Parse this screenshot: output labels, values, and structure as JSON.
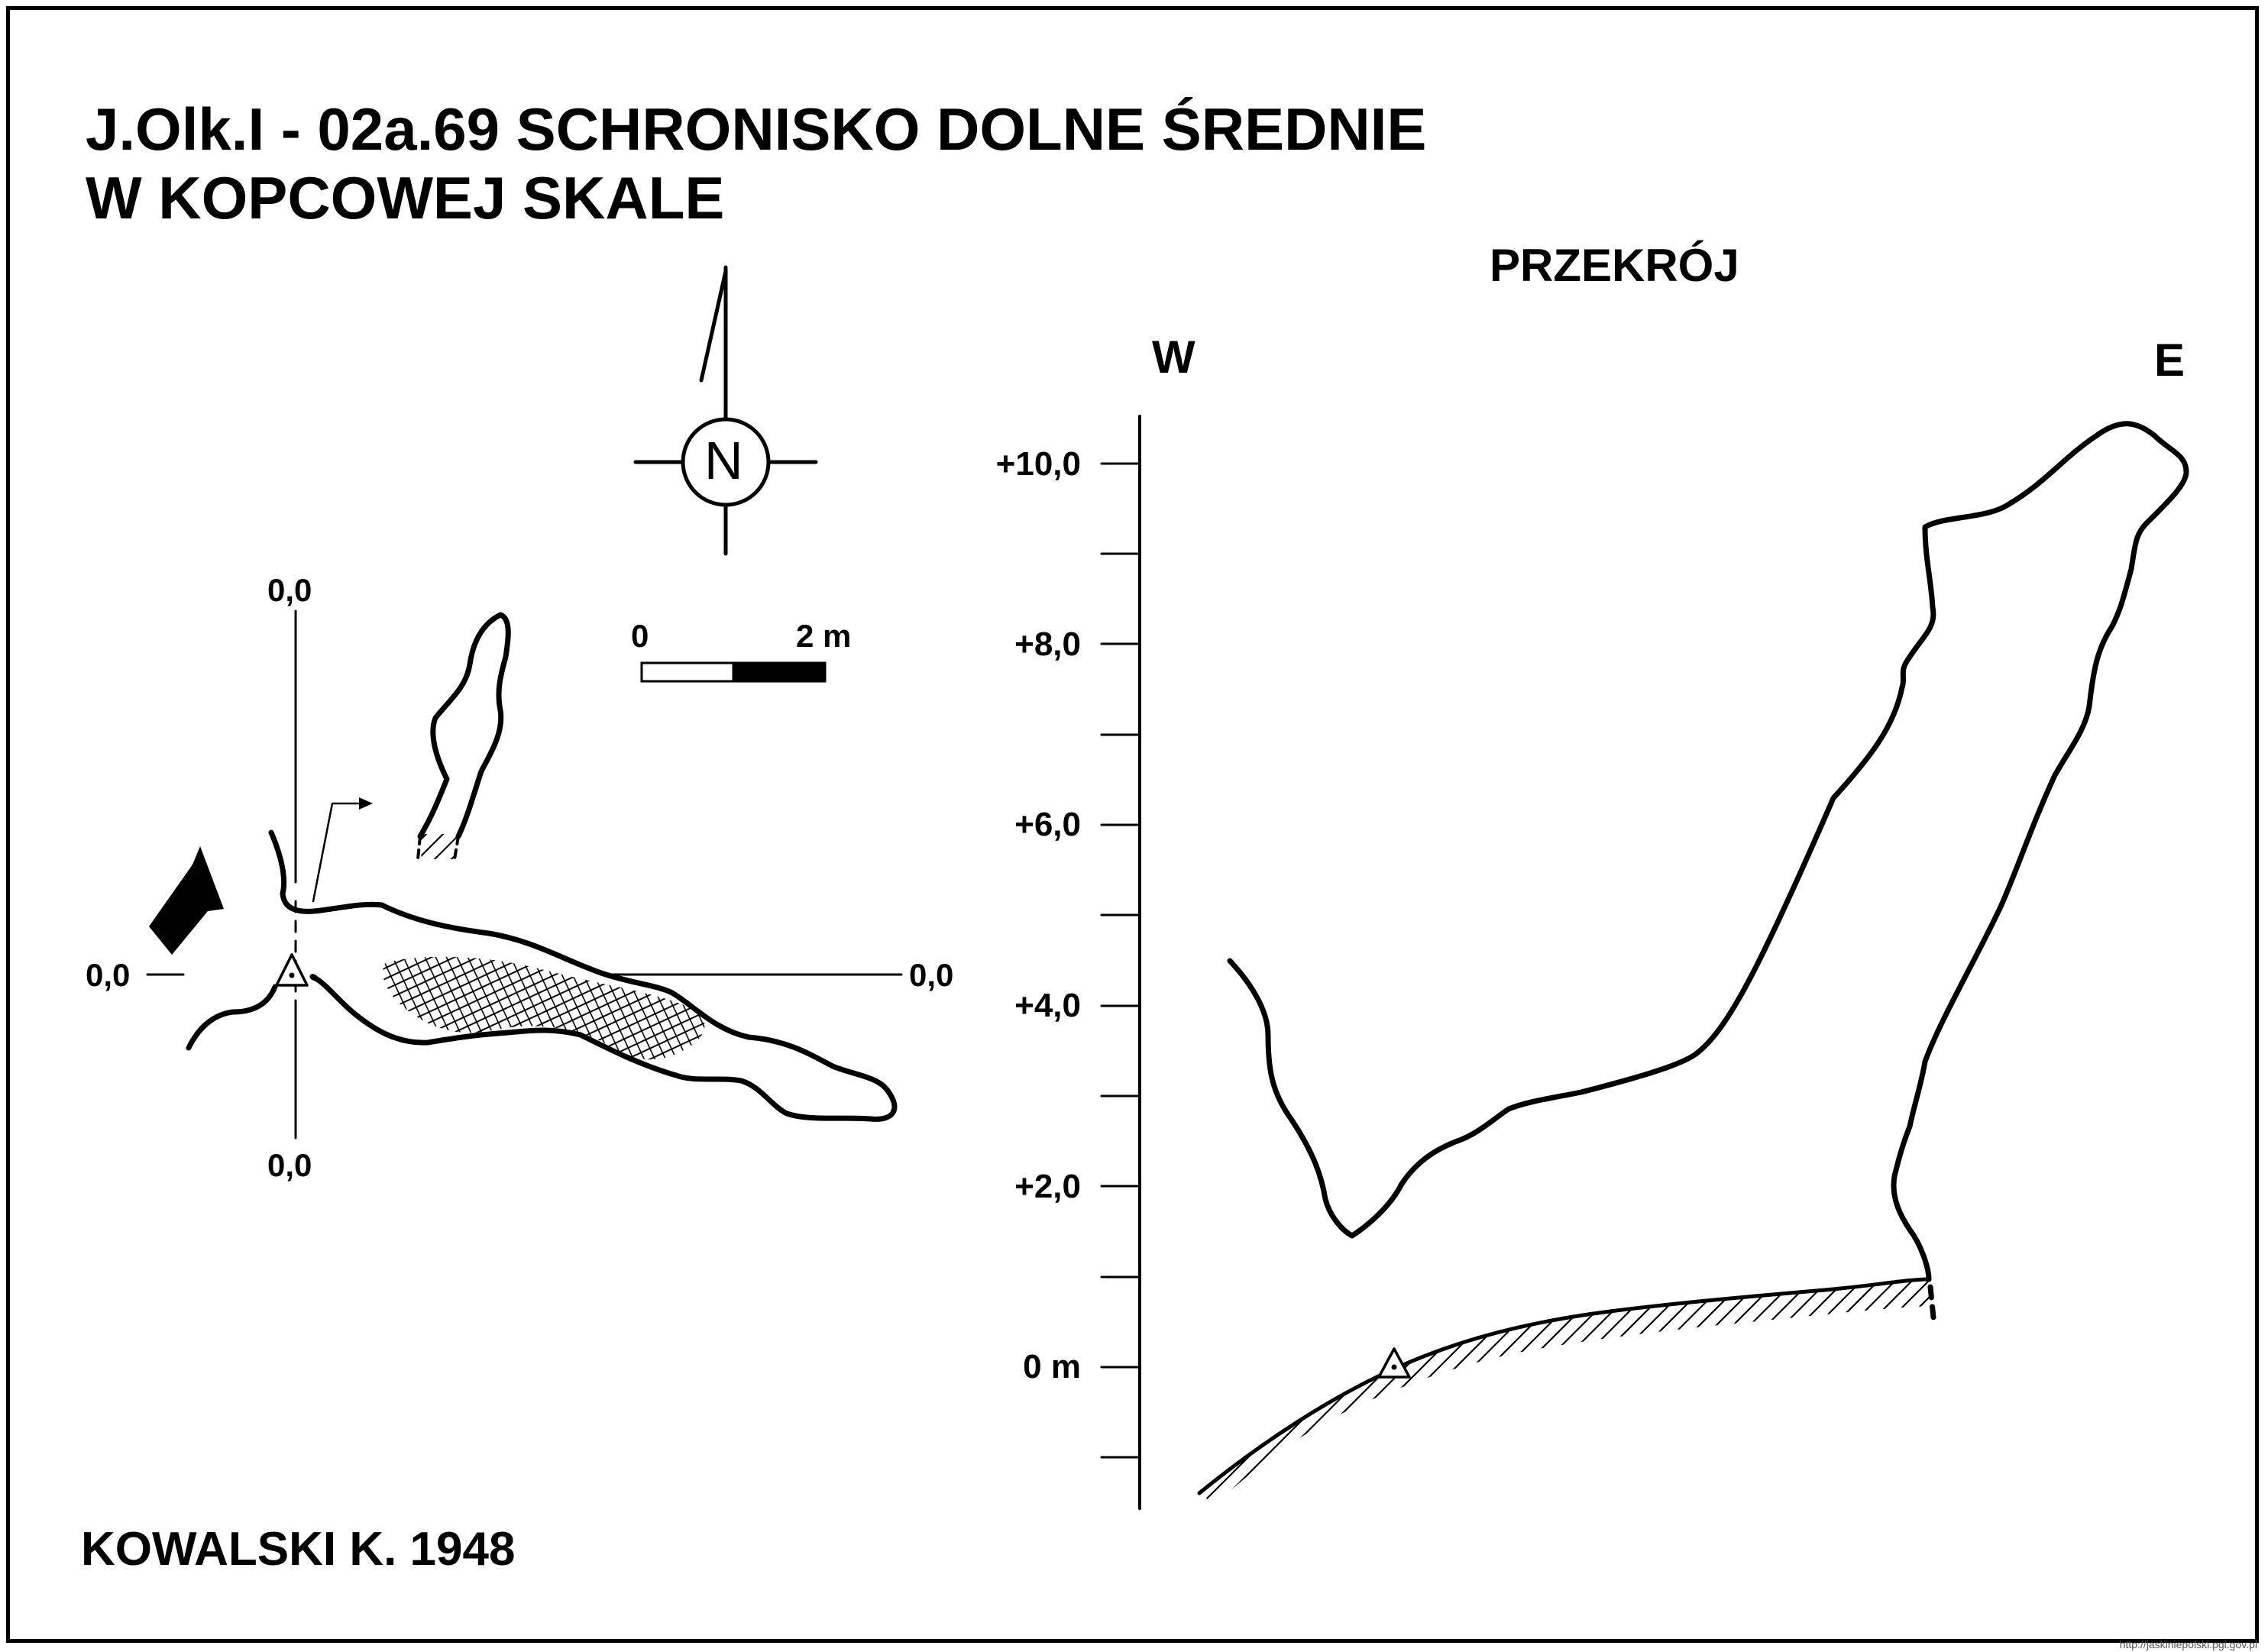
{
  "title": {
    "line1": "J.Olk.I - 02a.69  SCHRONISKO DOLNE ŚREDNIE",
    "line2": "W KOPCOWEJ SKALE"
  },
  "section": {
    "heading": "PRZEKRÓJ",
    "west": "W",
    "east": "E",
    "elevation_labels": [
      "+10,0",
      "+8,0",
      "+6,0",
      "+4,0",
      "+2,0",
      "0 m"
    ]
  },
  "compass": {
    "letter": "N"
  },
  "scale_bar": {
    "start": "0",
    "end": "2 m"
  },
  "plan": {
    "datum_top": "0,0",
    "datum_bottom": "0,0",
    "datum_left": "0,0",
    "datum_right": "0,0"
  },
  "author": "KOWALSKI K. 1948",
  "credit": "http://jaskiniepolski.pgi.gov.pl",
  "colors": {
    "ink": "#000000",
    "paper": "#ffffff"
  }
}
